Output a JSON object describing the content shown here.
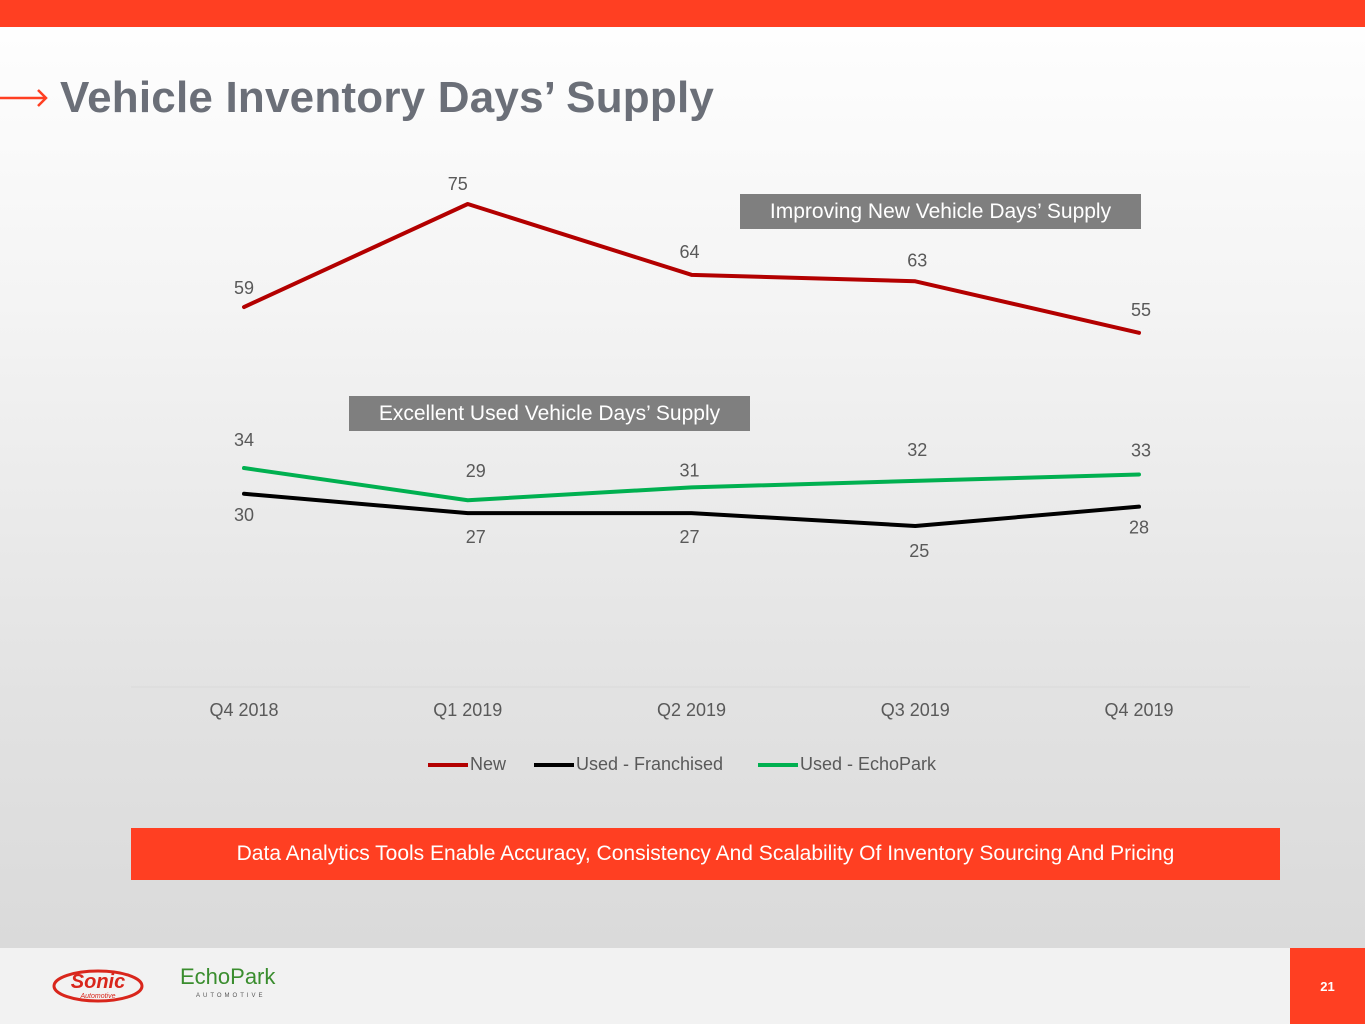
{
  "slide": {
    "title": "Vehicle Inventory Days’ Supply",
    "callout_new": "Improving New Vehicle Days’ Supply",
    "callout_used": "Excellent Used Vehicle Days’ Supply",
    "banner": "Data Analytics Tools Enable Accuracy, Consistency And Scalability Of Inventory Sourcing And Pricing",
    "page_number": "21",
    "logos": {
      "sonic": "Sonic",
      "sonic_sub": "Automotive",
      "echopark": "EchoPark",
      "echopark_sub": "AUTOMOTIVE"
    }
  },
  "colors": {
    "accent": "#ff3f22",
    "title": "#6b6f78",
    "callout_bg": "#7f7f7f",
    "new": "#b30000",
    "used_franchised": "#000000",
    "used_echopark": "#00b050"
  },
  "chart_data": {
    "type": "line",
    "title": "",
    "xlabel": "",
    "ylabel": "",
    "categories": [
      "Q4 2018",
      "Q1 2019",
      "Q2 2019",
      "Q3 2019",
      "Q4 2019"
    ],
    "series": [
      {
        "name": "New",
        "values": [
          59,
          75,
          64,
          63,
          55
        ],
        "color": "#b30000"
      },
      {
        "name": "Used - Franchised",
        "values": [
          30,
          27,
          27,
          25,
          28
        ],
        "color": "#000000"
      },
      {
        "name": "Used - EchoPark",
        "values": [
          34,
          29,
          31,
          32,
          33
        ],
        "color": "#00b050"
      }
    ],
    "ylim": [
      0,
      90
    ],
    "grid": false,
    "legend": "bottom"
  }
}
